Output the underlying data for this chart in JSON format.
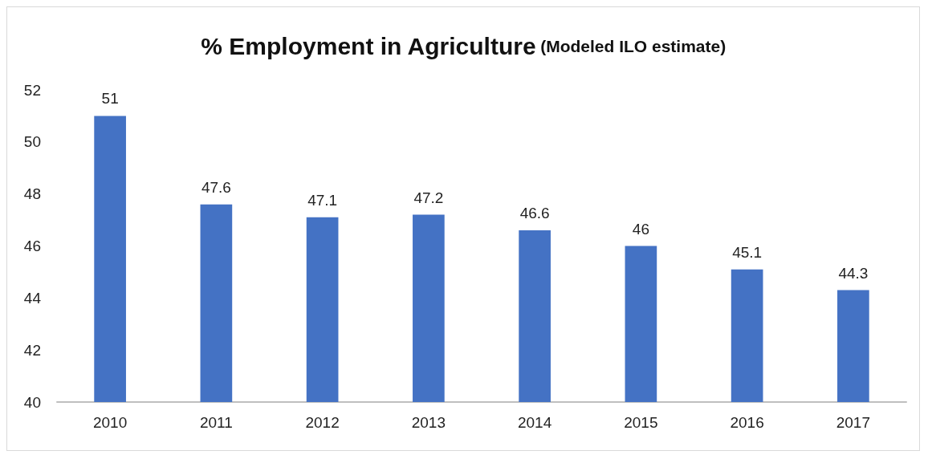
{
  "chart_data": {
    "type": "bar",
    "title": "% Employment in Agriculture",
    "subtitle": "(Modeled ILO estimate)",
    "categories": [
      "2010",
      "2011",
      "2012",
      "2013",
      "2014",
      "2015",
      "2016",
      "2017"
    ],
    "values": [
      51,
      47.6,
      47.1,
      47.2,
      46.6,
      46,
      45.1,
      44.3
    ],
    "color": "#4472c4",
    "ylim": [
      40,
      52
    ],
    "yticks": [
      40,
      42,
      44,
      46,
      48,
      50,
      52
    ],
    "grid": false,
    "data_labels": true
  }
}
